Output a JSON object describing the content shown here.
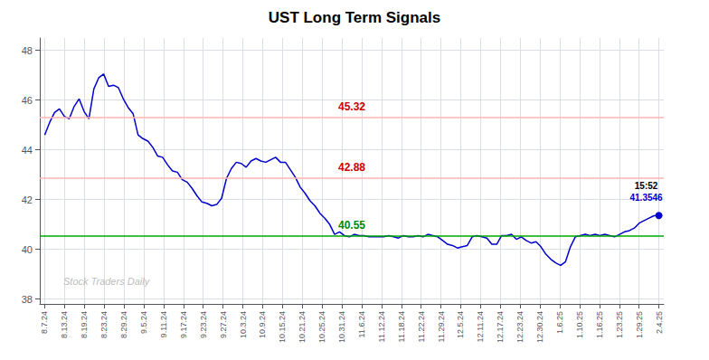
{
  "chart_data": {
    "type": "line",
    "title": "UST Long Term Signals",
    "color": "#0000cc",
    "x": [
      0,
      1,
      2,
      3,
      4,
      5,
      6,
      7,
      8,
      9,
      10,
      11,
      12,
      13,
      14,
      15,
      16,
      17,
      18,
      19,
      20,
      21,
      22,
      23,
      24,
      25,
      26,
      27,
      28,
      29,
      30,
      31,
      32,
      33,
      34,
      35,
      36,
      37,
      38,
      39,
      40,
      41,
      42,
      43,
      44,
      45,
      46,
      47,
      48,
      49,
      50,
      51,
      52,
      53,
      54,
      55,
      56,
      57,
      58,
      59,
      60,
      61,
      62,
      63,
      64,
      65,
      66,
      67,
      68,
      69,
      70,
      71,
      72,
      73,
      74,
      75,
      76,
      77,
      78,
      79,
      80,
      81,
      82,
      83,
      84,
      85,
      86,
      87,
      88,
      89,
      90,
      91,
      92,
      93,
      94,
      95,
      96,
      97,
      98,
      99,
      100,
      101,
      102,
      103,
      104,
      105,
      106,
      107,
      108,
      109,
      110,
      111,
      112,
      113,
      114,
      115,
      116,
      117,
      118,
      119,
      120,
      121,
      122,
      123,
      124,
      125
    ],
    "values": [
      44.6,
      45.1,
      45.5,
      45.65,
      45.35,
      45.25,
      45.75,
      46.05,
      45.55,
      45.25,
      46.45,
      46.9,
      47.05,
      46.55,
      46.6,
      46.5,
      46.05,
      45.7,
      45.45,
      44.6,
      44.45,
      44.35,
      44.1,
      43.75,
      43.7,
      43.4,
      43.15,
      43.1,
      42.8,
      42.7,
      42.45,
      42.15,
      41.9,
      41.85,
      41.75,
      41.8,
      42.05,
      42.85,
      43.25,
      43.5,
      43.45,
      43.3,
      43.55,
      43.65,
      43.55,
      43.5,
      43.6,
      43.7,
      43.5,
      43.5,
      43.2,
      42.9,
      42.5,
      42.25,
      41.95,
      41.75,
      41.45,
      41.25,
      41.0,
      40.6,
      40.7,
      40.55,
      40.5,
      40.6,
      40.55,
      40.55,
      40.5,
      40.5,
      40.5,
      40.5,
      40.55,
      40.5,
      40.45,
      40.55,
      40.5,
      40.5,
      40.55,
      40.5,
      40.6,
      40.55,
      40.5,
      40.35,
      40.2,
      40.15,
      40.05,
      40.1,
      40.15,
      40.5,
      40.55,
      40.5,
      40.45,
      40.2,
      40.2,
      40.55,
      40.55,
      40.6,
      40.4,
      40.5,
      40.35,
      40.25,
      40.3,
      40.1,
      39.8,
      39.6,
      39.45,
      39.35,
      39.5,
      40.1,
      40.5,
      40.55,
      40.6,
      40.55,
      40.6,
      40.55,
      40.6,
      40.55,
      40.5,
      40.6,
      40.7,
      40.75,
      40.85,
      41.05,
      41.15,
      41.25,
      41.35,
      41.3546
    ],
    "xlim": [
      -1,
      126
    ],
    "xticks": [
      {
        "value": 0,
        "label": "8.7.24"
      },
      {
        "value": 4.032258064516,
        "label": "8.13.24"
      },
      {
        "value": 8.064516129032,
        "label": "8.19.24"
      },
      {
        "value": 12.096774193548,
        "label": "8.23.24"
      },
      {
        "value": 16.129032258065,
        "label": "8.29.24"
      },
      {
        "value": 20.161290322581,
        "label": "9.5.24"
      },
      {
        "value": 24.193548387097,
        "label": "9.11.24"
      },
      {
        "value": 28.225806451613,
        "label": "9.17.24"
      },
      {
        "value": 32.258064516129,
        "label": "9.23.24"
      },
      {
        "value": 36.290322580645,
        "label": "9.27.24"
      },
      {
        "value": 40.322580645161,
        "label": "10.3.24"
      },
      {
        "value": 44.354838709677,
        "label": "10.9.24"
      },
      {
        "value": 48.387096774194,
        "label": "10.15.24"
      },
      {
        "value": 52.41935483871,
        "label": "10.21.24"
      },
      {
        "value": 56.451612903226,
        "label": "10.25.24"
      },
      {
        "value": 60.483870967742,
        "label": "10.31.24"
      },
      {
        "value": 64.516129032258,
        "label": "11.6.24"
      },
      {
        "value": 68.548387096774,
        "label": "11.12.24"
      },
      {
        "value": 72.58064516129,
        "label": "11.18.24"
      },
      {
        "value": 76.612903225806,
        "label": "11.22.24"
      },
      {
        "value": 80.645161290323,
        "label": "11.29.24"
      },
      {
        "value": 84.677419354839,
        "label": "12.5.24"
      },
      {
        "value": 88.709677419355,
        "label": "12.11.24"
      },
      {
        "value": 92.741935483871,
        "label": "12.17.24"
      },
      {
        "value": 96.774193548387,
        "label": "12.23.24"
      },
      {
        "value": 100.806451612903,
        "label": "12.30.24"
      },
      {
        "value": 104.838709677419,
        "label": "1.6.25"
      },
      {
        "value": 108.870967741935,
        "label": "1.10.25"
      },
      {
        "value": 112.903225806452,
        "label": "1.16.25"
      },
      {
        "value": 116.935483870968,
        "label": "1.23.25"
      },
      {
        "value": 120.967741935484,
        "label": "1.29.25"
      },
      {
        "value": 125,
        "label": "2.4.25"
      }
    ],
    "ylim": [
      37.8,
      48.5
    ],
    "yticks": [
      38,
      40,
      42,
      44,
      46,
      48
    ],
    "grid": true,
    "hlines": [
      {
        "value": 45.32,
        "color": "#ffb3b3",
        "label": "45.32",
        "label_color": "#cc0000"
      },
      {
        "value": 42.88,
        "color": "#ffb3b3",
        "label": "42.88",
        "label_color": "#cc0000"
      },
      {
        "value": 40.55,
        "color": "#00aa00",
        "label": "40.55",
        "label_color": "#008800"
      }
    ],
    "endpoint": {
      "value": 41.3546,
      "label": "41.3546",
      "time": "15:52",
      "time_color": "#000000"
    },
    "watermark": {
      "text": "Stock Traders Daily",
      "color": "#aaaaaa"
    }
  }
}
